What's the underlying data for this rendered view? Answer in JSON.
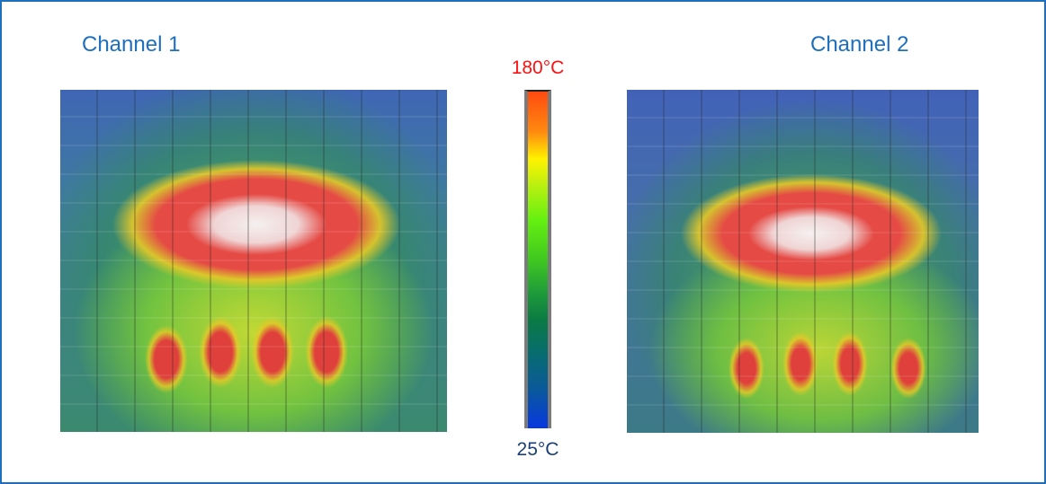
{
  "channels": [
    {
      "label": "Channel 1"
    },
    {
      "label": "Channel 2"
    }
  ],
  "colorbar": {
    "max_label": "180°C",
    "min_label": "25°C",
    "colormap": [
      "#0838e0",
      "#0a5a98",
      "#0a7a44",
      "#40c820",
      "#66f010",
      "#fff200",
      "#ff8a10",
      "#ff4a10"
    ],
    "max_color": "#ff1010",
    "min_color": "#1a3f78"
  },
  "border_color": "#1f6fbf"
}
